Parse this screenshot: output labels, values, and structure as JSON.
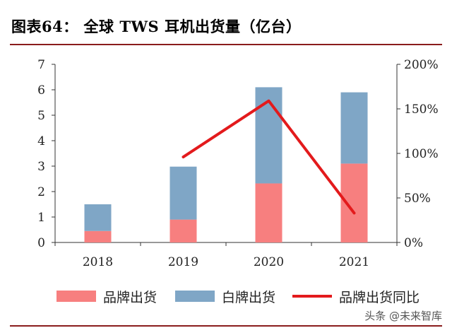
{
  "figure": {
    "title": "图表64：  全球 TWS 耳机出货量（亿台）"
  },
  "watermark": "头条 @未来智库",
  "colors": {
    "brand": "#f77f7f",
    "white_label": "#7fa6c6",
    "yoy": "#e31a1c"
  },
  "chart_data": {
    "type": "bar",
    "stacked": true,
    "categories": [
      "2018",
      "2019",
      "2020",
      "2021"
    ],
    "series": [
      {
        "name": "品牌出货",
        "values": [
          0.45,
          0.9,
          2.32,
          3.1
        ],
        "color": "#f77f7f"
      },
      {
        "name": "白牌出货",
        "values": [
          1.05,
          2.08,
          3.78,
          2.8
        ],
        "color": "#7fa6c6"
      }
    ],
    "line_series": {
      "name": "品牌出货同比",
      "categories": [
        "2019",
        "2020",
        "2021"
      ],
      "values": [
        96,
        159,
        33
      ],
      "axis": "right",
      "color": "#e31a1c"
    },
    "y_left": {
      "min": 0,
      "max": 7,
      "ticks": [
        "0",
        "1",
        "2",
        "3",
        "4",
        "5",
        "6",
        "7"
      ]
    },
    "y_right": {
      "min": 0,
      "max": 200,
      "ticks": [
        "0%",
        "50%",
        "100%",
        "150%",
        "200%"
      ]
    },
    "legend": {
      "placement": "bottom",
      "entries": [
        "品牌出货",
        "白牌出货",
        "品牌出货同比"
      ]
    },
    "grid": false
  }
}
